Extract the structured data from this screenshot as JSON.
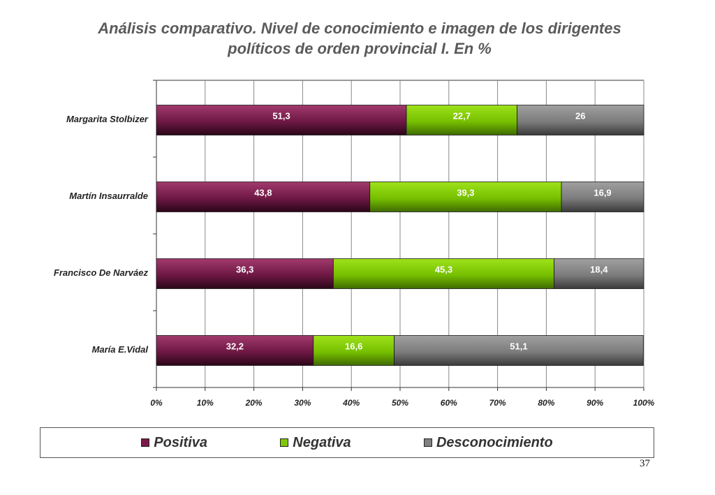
{
  "page_number": "37",
  "chart_data": {
    "type": "bar",
    "orientation": "horizontal",
    "stacked": true,
    "title_lines": [
      "Análisis comparativo. Nivel de conocimiento e imagen de los dirigentes",
      "políticos de orden provincial I.  En %"
    ],
    "categories": [
      "Margarita Stolbizer",
      "Martín Insaurralde",
      "Francisco De Narváez",
      "María E.Vidal"
    ],
    "series": [
      {
        "name": "Positiva",
        "color": "#7a1a4a",
        "values": [
          51.3,
          43.8,
          36.3,
          32.2
        ],
        "labels": [
          "51,3",
          "43,8",
          "36,3",
          "32,2"
        ]
      },
      {
        "name": "Negativa",
        "color": "#80c800",
        "values": [
          22.7,
          39.3,
          45.3,
          16.6
        ],
        "labels": [
          "22,7",
          "39,3",
          "45,3",
          "16,6"
        ]
      },
      {
        "name": "Desconocimiento",
        "color": "#808080",
        "values": [
          26,
          16.9,
          18.4,
          51.1
        ],
        "labels": [
          "26",
          "16,9",
          "18,4",
          "51,1"
        ]
      }
    ],
    "x_ticks": [
      "0%",
      "10%",
      "20%",
      "30%",
      "40%",
      "50%",
      "60%",
      "70%",
      "80%",
      "90%",
      "100%"
    ],
    "xlim": [
      0,
      100
    ],
    "grid": true,
    "legend_position": "bottom"
  }
}
